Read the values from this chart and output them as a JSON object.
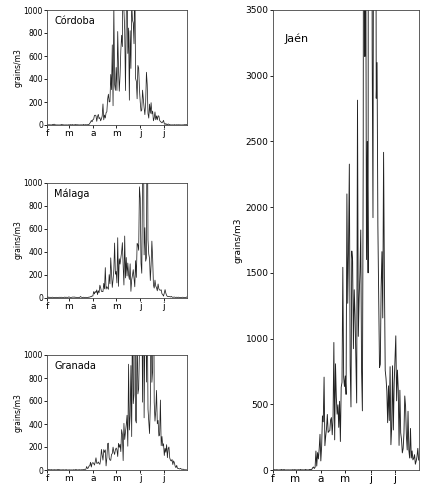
{
  "stations": [
    "Córdoba",
    "Málaga",
    "Granada",
    "Jaén"
  ],
  "x_labels": [
    "f",
    "m",
    "a",
    "m",
    "j",
    "j"
  ],
  "ylabel": "grains/m3",
  "small_ylim": [
    0,
    1000
  ],
  "large_ylim": [
    0,
    3500
  ],
  "large_yticks": [
    0,
    500,
    1000,
    1500,
    2000,
    2500,
    3000,
    3500
  ],
  "small_yticks": [
    0,
    200,
    400,
    600,
    800,
    1000
  ],
  "n_days": 181,
  "month_ticks": [
    0,
    28,
    59,
    89,
    120,
    150
  ],
  "background_color": "#ffffff",
  "line_color": "#222222"
}
